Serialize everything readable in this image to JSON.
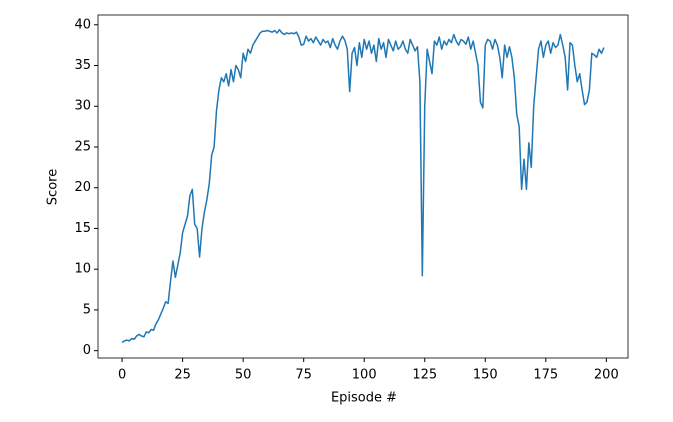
{
  "chart_data": {
    "type": "line",
    "x_label": "Episode #",
    "y_label": "Score",
    "x": [
      0,
      1,
      2,
      3,
      4,
      5,
      6,
      7,
      8,
      9,
      10,
      11,
      12,
      13,
      14,
      15,
      16,
      17,
      18,
      19,
      20,
      21,
      22,
      23,
      24,
      25,
      26,
      27,
      28,
      29,
      30,
      31,
      32,
      33,
      34,
      35,
      36,
      37,
      38,
      39,
      40,
      41,
      42,
      43,
      44,
      45,
      46,
      47,
      48,
      49,
      50,
      51,
      52,
      53,
      54,
      55,
      56,
      57,
      58,
      59,
      60,
      61,
      62,
      63,
      64,
      65,
      66,
      67,
      68,
      69,
      70,
      71,
      72,
      73,
      74,
      75,
      76,
      77,
      78,
      79,
      80,
      81,
      82,
      83,
      84,
      85,
      86,
      87,
      88,
      89,
      90,
      91,
      92,
      93,
      94,
      95,
      96,
      97,
      98,
      99,
      100,
      101,
      102,
      103,
      104,
      105,
      106,
      107,
      108,
      109,
      110,
      111,
      112,
      113,
      114,
      115,
      116,
      117,
      118,
      119,
      120,
      121,
      122,
      123,
      124,
      125,
      126,
      127,
      128,
      129,
      130,
      131,
      132,
      133,
      134,
      135,
      136,
      137,
      138,
      139,
      140,
      141,
      142,
      143,
      144,
      145,
      146,
      147,
      148,
      149,
      150,
      151,
      152,
      153,
      154,
      155,
      156,
      157,
      158,
      159,
      160,
      161,
      162,
      163,
      164,
      165,
      166,
      167,
      168,
      169,
      170,
      171,
      172,
      173,
      174,
      175,
      176,
      177,
      178,
      179,
      180,
      181,
      182,
      183,
      184,
      185,
      186,
      187,
      188,
      189,
      190,
      191,
      192,
      193,
      194,
      195,
      196,
      197,
      198,
      199
    ],
    "series": [
      {
        "color": "#1f77b4",
        "values": [
          1.0,
          1.2,
          1.3,
          1.2,
          1.5,
          1.4,
          1.8,
          2.0,
          1.8,
          1.7,
          2.3,
          2.2,
          2.6,
          2.5,
          3.3,
          3.8,
          4.5,
          5.2,
          6.0,
          5.8,
          8.5,
          11.0,
          9.0,
          10.5,
          12.0,
          14.5,
          15.5,
          16.5,
          19.0,
          19.8,
          15.5,
          15.0,
          11.5,
          15.0,
          17.0,
          18.5,
          20.5,
          24.0,
          25.0,
          29.5,
          32.0,
          33.5,
          33.0,
          34.0,
          32.5,
          34.5,
          33.0,
          35.0,
          34.5,
          33.5,
          36.5,
          35.5,
          37.0,
          36.5,
          37.5,
          38.0,
          38.5,
          39.0,
          39.2,
          39.2,
          39.3,
          39.2,
          39.1,
          39.3,
          39.0,
          39.4,
          39.0,
          38.8,
          39.0,
          38.9,
          39.0,
          38.9,
          39.1,
          38.5,
          37.5,
          37.6,
          38.6,
          38.0,
          38.3,
          37.8,
          38.5,
          38.0,
          37.5,
          38.2,
          37.8,
          38.0,
          37.2,
          38.3,
          37.5,
          37.0,
          38.0,
          38.6,
          38.1,
          37.0,
          31.8,
          36.5,
          37.2,
          35.0,
          37.8,
          36.0,
          38.2,
          37.0,
          38.0,
          36.5,
          37.5,
          35.5,
          38.3,
          37.0,
          37.8,
          36.0,
          38.2,
          37.5,
          36.8,
          38.0,
          37.0,
          37.3,
          38.0,
          37.0,
          36.5,
          38.2,
          37.5,
          36.8,
          37.3,
          33.0,
          9.2,
          30.0,
          37.0,
          35.5,
          34.0,
          38.0,
          37.5,
          38.5,
          37.0,
          38.0,
          37.5,
          38.2,
          37.8,
          38.8,
          38.0,
          37.5,
          38.2,
          38.0,
          37.6,
          38.5,
          37.0,
          38.0,
          36.5,
          35.0,
          30.5,
          29.8,
          37.5,
          38.2,
          38.0,
          37.0,
          38.2,
          37.5,
          36.0,
          33.5,
          37.5,
          36.0,
          37.3,
          36.0,
          33.5,
          29.0,
          27.5,
          19.8,
          23.5,
          19.8,
          25.5,
          22.5,
          30.0,
          33.5,
          37.0,
          38.0,
          36.0,
          37.5,
          38.0,
          36.5,
          37.8,
          37.2,
          37.5,
          38.8,
          37.5,
          36.0,
          32.0,
          37.8,
          37.5,
          35.0,
          33.0,
          34.0,
          32.0,
          30.2,
          30.5,
          32.0,
          36.5,
          36.3,
          36.0,
          37.0,
          36.5,
          37.2
        ]
      }
    ],
    "xlim": [
      -9.95,
      208.95
    ],
    "ylim": [
      -0.9,
      41.2
    ],
    "xticks": [
      0,
      25,
      50,
      75,
      100,
      125,
      150,
      175,
      200
    ],
    "yticks": [
      0,
      5,
      10,
      15,
      20,
      25,
      30,
      35,
      40
    ]
  }
}
